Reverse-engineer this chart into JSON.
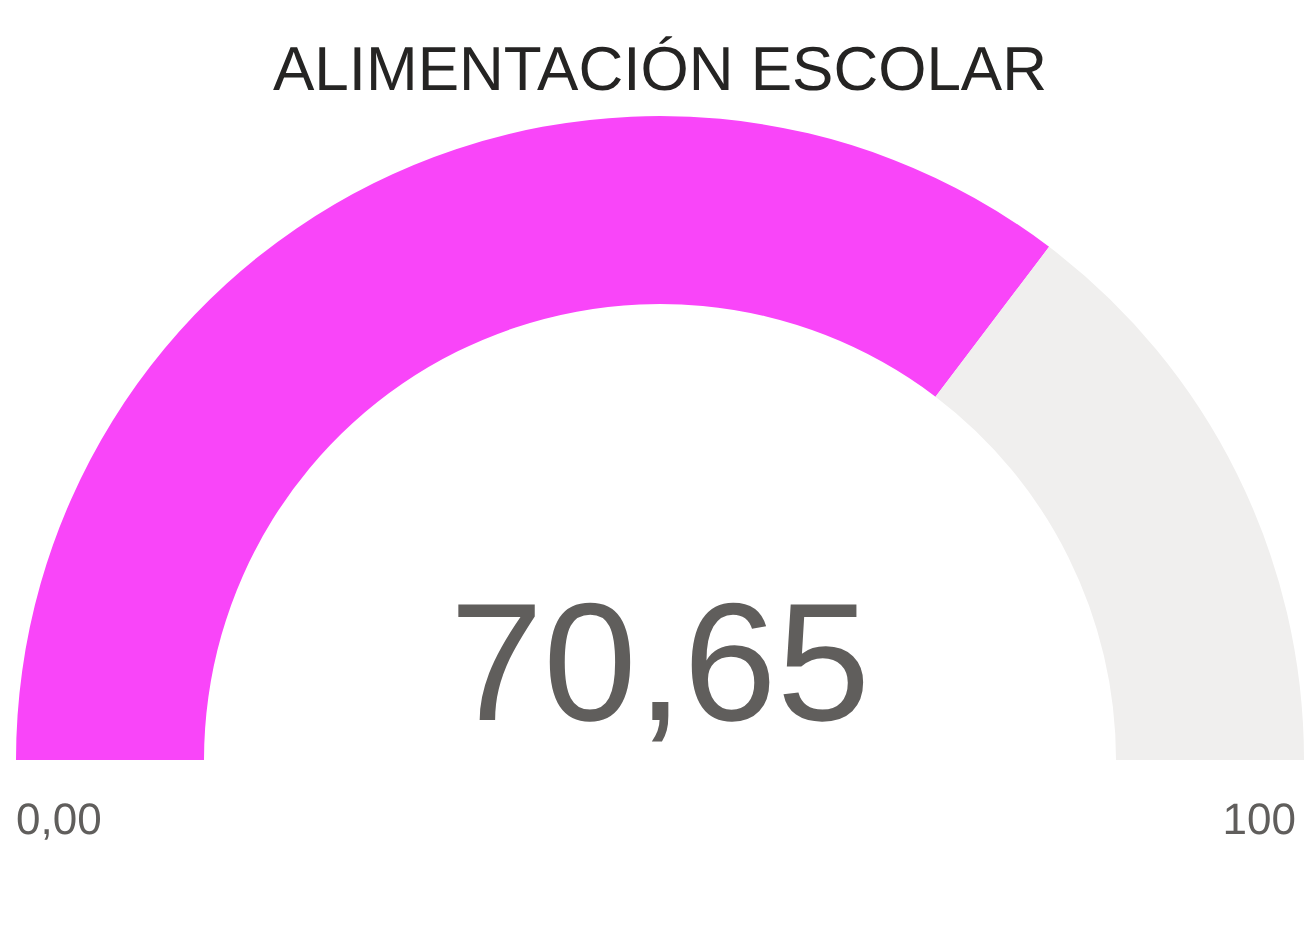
{
  "chart_data": {
    "type": "donut",
    "title": "ALIMENTACIÓN ESCOLAR",
    "categories": [
      null,
      null
    ],
    "values": [
      70.65,
      29.35
    ],
    "colors": [
      "#f945f9",
      "#f0efee"
    ],
    "annotations": [
      "70,65",
      "0,00",
      "100"
    ]
  }
}
